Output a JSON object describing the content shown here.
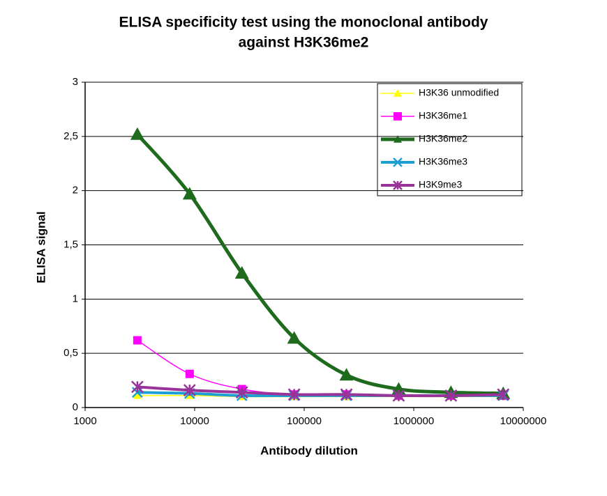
{
  "chart_data": {
    "type": "line",
    "title": [
      "ELISA specificity test using the monoclonal antibody",
      "against H3K36me2"
    ],
    "x_label": "Antibody dilution",
    "y_label": "ELISA signal",
    "x": [
      3000,
      9000,
      27000,
      81000,
      243000,
      729000,
      2187000,
      6561000
    ],
    "xscale": "log",
    "xlim": [
      1000,
      10000000
    ],
    "xticks": [
      1000,
      10000,
      100000,
      1000000,
      10000000
    ],
    "ylim": [
      0,
      3
    ],
    "yticks": [
      0,
      {
        "value": 0.5,
        "label": "0,5"
      },
      1,
      {
        "value": 1.5,
        "label": "1,5"
      },
      2,
      {
        "value": 2.5,
        "label": "2,5"
      },
      3
    ],
    "grid": true,
    "legend": "upper right",
    "series": [
      {
        "name": "H3K36 unmodified",
        "color": "#ffff00",
        "values": [
          0.11,
          0.11,
          0.1,
          0.1,
          0.1,
          0.1,
          0.1,
          0.1
        ]
      },
      {
        "name": "H3K36me1",
        "color": "#ff00ff",
        "values": [
          0.62,
          0.31,
          0.17,
          0.12,
          0.12,
          0.11,
          0.11,
          0.11
        ]
      },
      {
        "name": "H3K36me2",
        "color": "#1e6b1e",
        "values": [
          2.52,
          1.97,
          1.24,
          0.64,
          0.3,
          0.17,
          0.14,
          0.13
        ]
      },
      {
        "name": "H3K36me3",
        "color": "#1e9fd4",
        "values": [
          0.14,
          0.13,
          0.11,
          0.11,
          0.11,
          0.11,
          0.11,
          0.11
        ]
      },
      {
        "name": "H3K9me3",
        "color": "#993399",
        "values": [
          0.19,
          0.16,
          0.14,
          0.12,
          0.12,
          0.11,
          0.11,
          0.12
        ]
      }
    ]
  }
}
